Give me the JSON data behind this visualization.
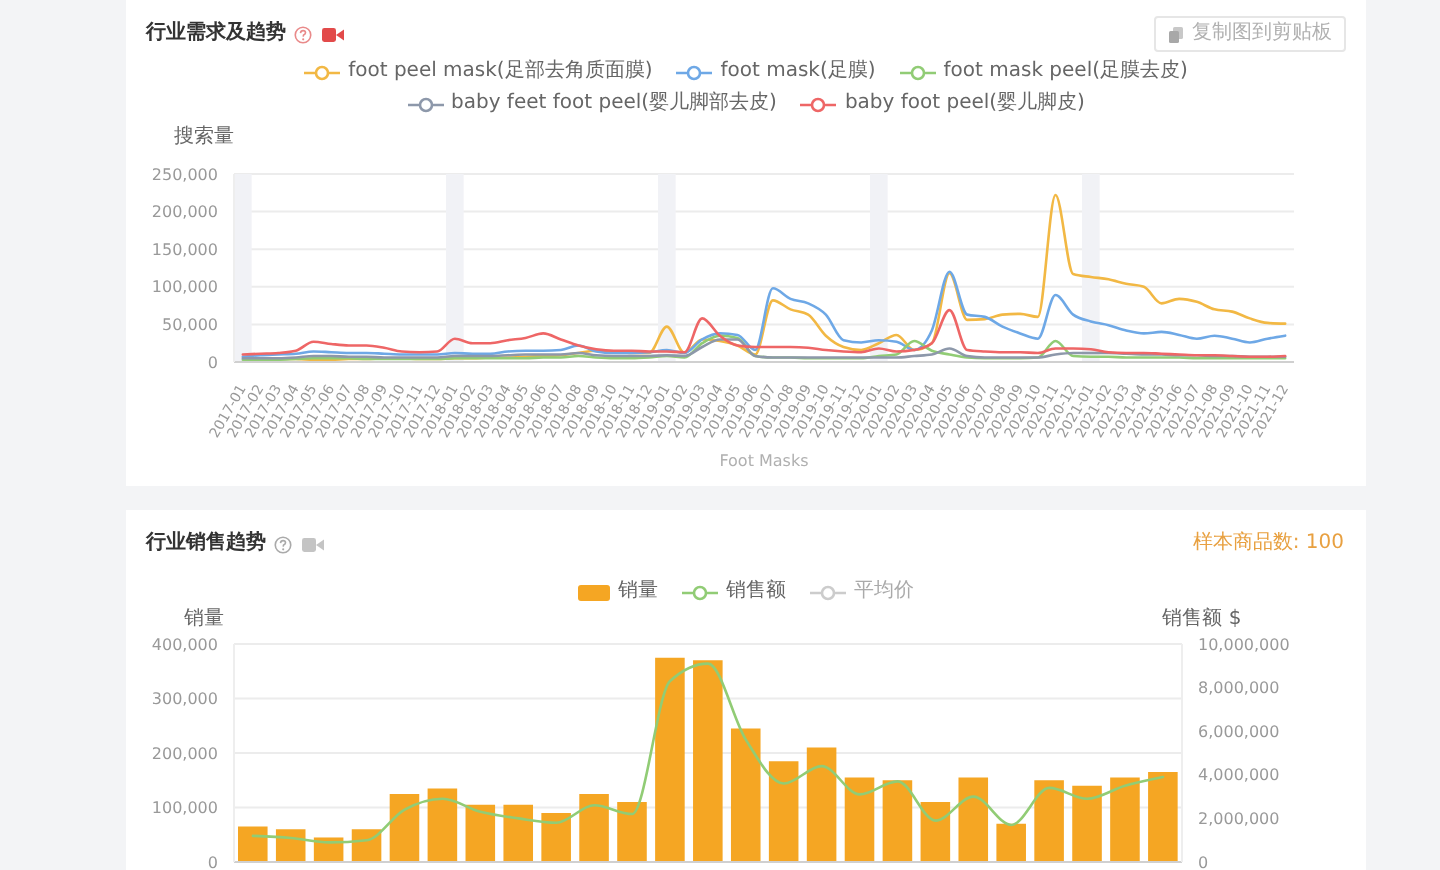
{
  "chart_data": [
    {
      "type": "line",
      "title": "行业需求及趋势",
      "xlabel": "Foot Masks",
      "ylabel": "搜索量",
      "annotations": [
        "复制图到剪贴板"
      ],
      "categories": [
        "2017-01",
        "2017-02",
        "2017-03",
        "2017-04",
        "2017-05",
        "2017-06",
        "2017-07",
        "2017-08",
        "2017-09",
        "2017-10",
        "2017-11",
        "2017-12",
        "2018-01",
        "2018-02",
        "2018-03",
        "2018-04",
        "2018-05",
        "2018-06",
        "2018-07",
        "2018-08",
        "2018-09",
        "2018-10",
        "2018-11",
        "2018-12",
        "2019-01",
        "2019-02",
        "2019-03",
        "2019-04",
        "2019-05",
        "2019-06",
        "2019-07",
        "2019-08",
        "2019-09",
        "2019-10",
        "2019-11",
        "2019-12",
        "2020-01",
        "2020-02",
        "2020-03",
        "2020-04",
        "2020-05",
        "2020-06",
        "2020-07",
        "2020-08",
        "2020-09",
        "2020-10",
        "2020-11",
        "2020-12",
        "2021-01",
        "2021-02",
        "2021-03",
        "2021-04",
        "2021-05",
        "2021-06",
        "2021-07",
        "2021-08",
        "2021-09",
        "2021-10",
        "2021-11",
        "2021-12"
      ],
      "series": [
        {
          "name": "foot peel mask(足部去角质面膜)",
          "color": "#f2b844",
          "values": [
            null,
            null,
            4000,
            4000,
            3000,
            3000,
            4000,
            4000,
            5000,
            5000,
            4000,
            4000,
            5000,
            5000,
            6000,
            6000,
            7000,
            8000,
            9000,
            12000,
            15000,
            14000,
            12000,
            12000,
            47000,
            12000,
            30000,
            28000,
            22000,
            10000,
            82000,
            70000,
            63000,
            35000,
            20000,
            16000,
            25000,
            36000,
            16000,
            25000,
            118000,
            56000,
            57000,
            63000,
            64000,
            60000,
            222000,
            117000,
            113000,
            110000,
            104000,
            100000,
            78000,
            84000,
            80000,
            70000,
            67000,
            58000,
            52000,
            51000
          ]
        },
        {
          "name": "foot mask(足膜)",
          "color": "#6ea8e6",
          "values": [
            7000,
            9000,
            10000,
            11000,
            14000,
            13000,
            12000,
            12000,
            11000,
            10000,
            10000,
            10000,
            12000,
            11000,
            11000,
            14000,
            15000,
            15000,
            16000,
            22000,
            14000,
            12000,
            12000,
            13000,
            16000,
            12000,
            30000,
            38000,
            36000,
            16000,
            98000,
            84000,
            78000,
            63000,
            29000,
            26000,
            29000,
            27000,
            16000,
            42000,
            120000,
            63000,
            60000,
            47000,
            38000,
            31000,
            89000,
            63000,
            54000,
            49000,
            42000,
            38000,
            40000,
            36000,
            31000,
            35000,
            31000,
            26000,
            31000,
            35000
          ]
        },
        {
          "name": "foot mask peel(足膜去皮)",
          "color": "#91cc75",
          "values": [
            3000,
            3000,
            3000,
            4000,
            5000,
            5000,
            5000,
            4000,
            4000,
            4000,
            4000,
            4000,
            5000,
            5000,
            5000,
            5000,
            5000,
            6000,
            6000,
            8000,
            6000,
            5000,
            5000,
            6000,
            8000,
            6000,
            25000,
            35000,
            32000,
            8000,
            6000,
            6000,
            5000,
            5000,
            5000,
            5000,
            8000,
            10000,
            28000,
            15000,
            10000,
            6000,
            5000,
            5000,
            5000,
            6000,
            28000,
            8000,
            7000,
            7000,
            6000,
            6000,
            6000,
            6000,
            5000,
            5000,
            5000,
            5000,
            5000,
            5000
          ]
        },
        {
          "name": "baby feet foot peel(婴儿脚部去皮)",
          "color": "#8d98aa",
          "values": [
            5000,
            5000,
            5000,
            6000,
            8000,
            8000,
            7000,
            7000,
            6000,
            6000,
            6000,
            6000,
            8000,
            8000,
            8000,
            9000,
            10000,
            10000,
            10000,
            12000,
            9000,
            8000,
            8000,
            8000,
            9000,
            8000,
            20000,
            30000,
            30000,
            8000,
            6000,
            6000,
            6000,
            6000,
            6000,
            6000,
            6000,
            6000,
            8000,
            10000,
            18000,
            8000,
            6000,
            6000,
            6000,
            6000,
            10000,
            12000,
            12000,
            12000,
            11000,
            10000,
            10000,
            9000,
            9000,
            8000,
            8000,
            7000,
            7000,
            7000
          ]
        },
        {
          "name": "baby foot peel(婴儿脚皮)",
          "color": "#ee6666",
          "values": [
            10000,
            11000,
            12000,
            15000,
            27000,
            24000,
            22000,
            22000,
            19000,
            14000,
            13000,
            14000,
            31000,
            25000,
            25000,
            29000,
            32000,
            38000,
            30000,
            22000,
            17000,
            15000,
            15000,
            14000,
            14000,
            13000,
            58000,
            35000,
            22000,
            20000,
            20000,
            20000,
            19000,
            16000,
            14000,
            13000,
            18000,
            14000,
            16000,
            25000,
            69000,
            16000,
            14000,
            13000,
            13000,
            12000,
            18000,
            18000,
            17000,
            13000,
            12000,
            12000,
            11000,
            10000,
            9000,
            9000,
            8000,
            7000,
            7000,
            8000
          ]
        }
      ],
      "ylim": [
        0,
        250000
      ],
      "yticks": [
        0,
        {
          "value": 50000,
          "label": "50,000"
        },
        {
          "value": 100000,
          "label": "100,000"
        },
        {
          "value": 150000,
          "label": "150,000"
        },
        {
          "value": 200000,
          "label": "200,000"
        },
        {
          "value": 250000,
          "label": "250,000"
        }
      ],
      "grid": "y",
      "legend": "top",
      "bands": [
        {
          "axis": "x",
          "from": "2017-01",
          "to": "2017-01",
          "color": "#f1f2f6"
        },
        {
          "axis": "x",
          "from": "2018-01",
          "to": "2018-01",
          "color": "#f1f2f6"
        },
        {
          "axis": "x",
          "from": "2019-01",
          "to": "2019-01",
          "color": "#f1f2f6"
        },
        {
          "axis": "x",
          "from": "2020-01",
          "to": "2020-01",
          "color": "#f1f2f6"
        },
        {
          "axis": "x",
          "from": "2021-01",
          "to": "2021-01",
          "color": "#f1f2f6"
        }
      ]
    },
    {
      "type": "bar",
      "title": "行业销售趋势",
      "ylabel": "销量",
      "y2label": "销售额 $",
      "annotations": [
        "样本商品数: 100"
      ],
      "categories": [
        null,
        null,
        null,
        null,
        null,
        null,
        null,
        null,
        null,
        null,
        null,
        null,
        null,
        null,
        null,
        null,
        null,
        null,
        null,
        null,
        null,
        null,
        null,
        null,
        null
      ],
      "series": [
        {
          "name": "销量",
          "color": "#f5a623",
          "values": [
            65000,
            60000,
            45000,
            60000,
            125000,
            135000,
            105000,
            105000,
            90000,
            125000,
            110000,
            375000,
            370000,
            245000,
            185000,
            210000,
            155000,
            150000,
            110000,
            155000,
            70000,
            150000,
            140000,
            155000,
            165000
          ]
        },
        {
          "name": "销售额",
          "type": "line",
          "axis": "y2",
          "color": "#91cc75",
          "values": [
            1200000,
            1100000,
            900000,
            1000000,
            2400000,
            2900000,
            2300000,
            2000000,
            1800000,
            2600000,
            2200000,
            8300000,
            9100000,
            5600000,
            3600000,
            4400000,
            3100000,
            3700000,
            1900000,
            3000000,
            1700000,
            3400000,
            2900000,
            3500000,
            3900000
          ]
        },
        {
          "name": "平均价",
          "type": "line",
          "color": "#cccccc",
          "values": [
            null,
            null,
            null,
            null,
            null,
            null,
            null,
            null,
            null,
            null,
            null,
            null,
            null,
            null,
            null,
            null,
            null,
            null,
            null,
            null,
            null,
            null,
            null,
            null,
            null
          ]
        }
      ],
      "ylim": [
        0,
        400000
      ],
      "yticks": [
        0,
        {
          "value": 100000,
          "label": "100,000"
        },
        {
          "value": 200000,
          "label": "200,000"
        },
        {
          "value": 300000,
          "label": "300,000"
        },
        {
          "value": 400000,
          "label": "400,000"
        }
      ],
      "y2lim": [
        0,
        10000000
      ],
      "y2ticks": [
        0,
        {
          "value": 2000000,
          "label": "2,000,000"
        },
        {
          "value": 4000000,
          "label": "4,000,000"
        },
        {
          "value": 6000000,
          "label": "6,000,000"
        },
        {
          "value": 8000000,
          "label": "8,000,000"
        },
        {
          "value": 10000000,
          "label": "10,000,000"
        }
      ],
      "grid": "y",
      "legend": "top"
    }
  ]
}
